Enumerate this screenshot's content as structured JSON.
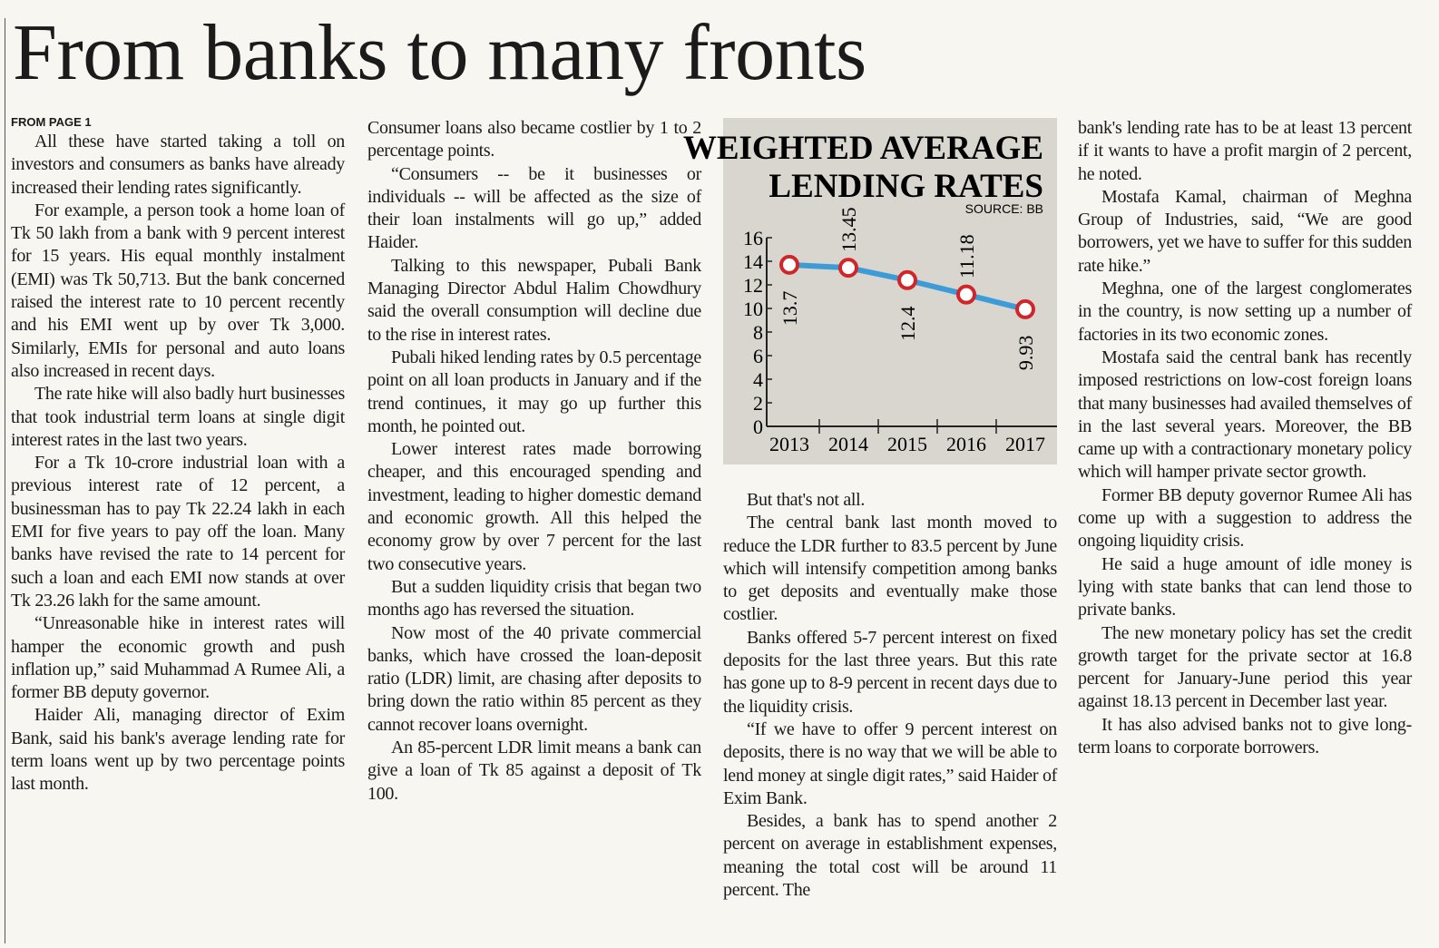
{
  "headline": "From banks to many fronts",
  "kicker": "FROM PAGE 1",
  "columns": [
    [
      "All these have started taking a toll on investors and consumers as banks have already increased their lending rates significantly.",
      "For example, a person took a home loan of Tk 50 lakh from a bank with 9 percent interest for 15 years. His equal monthly instalment (EMI) was Tk 50,713. But the bank concerned raised the interest rate to 10 percent recently and his EMI went up by over Tk 3,000. Similarly, EMIs for personal and auto loans also increased in recent days.",
      "The rate hike will also badly hurt businesses that took industrial term loans at single digit interest rates in the last two years.",
      "For a Tk 10-crore industrial loan with a previous interest rate of 12 percent, a businessman has to pay Tk 22.24 lakh in each EMI for five years to pay off the loan. Many banks have revised the rate to 14 percent for such a loan and each EMI now stands at over Tk 23.26 lakh for the same amount.",
      "“Unreasonable hike in interest rates will hamper the economic growth and push inflation up,” said Muhammad A Rumee Ali, a former BB deputy governor.",
      "Haider Ali, managing director of Exim Bank, said his bank's average lending rate for term loans went up by two percentage points last month."
    ],
    [
      "Consumer loans also became costlier by 1 to 2 percentage points.",
      "“Consumers -- be it businesses or individuals -- will be affected as the size of their loan instalments will go up,” added Haider.",
      "Talking to this newspaper, Pubali Bank Managing Director Abdul Halim Chowdhury said the overall consumption will decline due to the rise in interest rates.",
      "Pubali hiked lending rates by 0.5 percentage point on all loan products in January and if the trend continues, it may go up further this month, he pointed out.",
      "Lower interest rates made borrowing cheaper, and this encouraged spending and investment, leading to higher domestic demand and economic growth. All this helped the economy grow by over 7 percent for the last two consecutive years.",
      "But a sudden liquidity crisis that began two months ago has reversed the situation.",
      "Now most of the 40 private commercial banks, which have crossed the loan-deposit ratio (LDR) limit, are chasing after deposits to bring down the ratio within 85 percent as they cannot recover loans overnight.",
      "An 85-percent LDR limit means a bank can give a loan of Tk 85 against a deposit of Tk 100."
    ],
    [
      "But that's not all.",
      "The central bank last month moved to reduce the LDR further to 83.5 percent by June which will intensify competition among banks to get deposits and eventually make those costlier.",
      "Banks offered 5-7 percent interest on fixed deposits for the last three years. But this rate has gone up to 8-9 percent in recent days due to the liquidity crisis.",
      "“If we have to offer 9 percent interest on deposits, there is no way that we will be able to lend money at single digit rates,” said Haider of Exim Bank.",
      "Besides, a bank has to spend another 2 percent on average in establishment expenses, meaning the total cost will be around 11 percent. The"
    ],
    [
      "bank's lending rate has to be at least 13 percent if it wants to have a profit margin of 2 percent, he noted.",
      "Mostafa Kamal, chairman of Meghna Group of Industries, said, “We are good borrowers, yet we have to suffer for this sudden rate hike.”",
      "Meghna, one of the largest conglomerates in the country, is now setting up a number of factories in its two economic zones.",
      "Mostafa said the central bank has recently imposed restrictions on low-cost foreign loans that many businesses had availed themselves of in the last several years. Moreover, the BB came up with a contractionary monetary policy which will hamper private sector growth.",
      "Former BB deputy governor Rumee Ali has come up with a suggestion to address the ongoing liquidity crisis.",
      "He said a huge amount of idle money is lying with state banks that can lend those to private banks.",
      "The new monetary policy has set the credit growth target for the private sector at 16.8 percent for January-June period this year against 18.13 percent in December last year.",
      "It has also advised banks not to give long-term loans to corporate borrowers."
    ]
  ],
  "chart_data": {
    "type": "line",
    "title": [
      "WEIGHTED AVERAGE",
      "LENDING RATES"
    ],
    "source": "SOURCE: BB",
    "categories": [
      "2013",
      "2014",
      "2015",
      "2016",
      "2017"
    ],
    "values": [
      13.7,
      13.45,
      12.4,
      11.18,
      9.93
    ],
    "color": "#3d9bd8",
    "marker_color": "#d0262a",
    "ylim": [
      0,
      16
    ],
    "yticks": [
      0,
      2,
      4,
      6,
      8,
      10,
      12,
      14,
      16
    ]
  }
}
